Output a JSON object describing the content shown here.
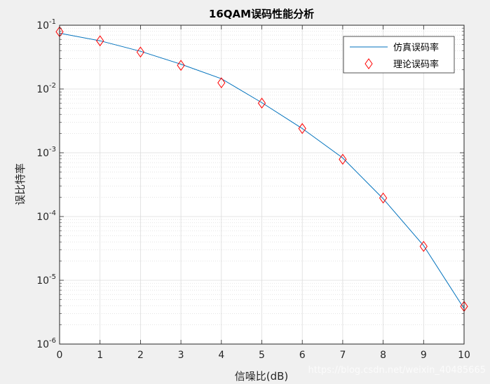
{
  "chart_data": {
    "type": "line",
    "title": "16QAM误码性能分析",
    "xlabel": "信噪比(dB)",
    "ylabel": "误比特率",
    "x": [
      0,
      1,
      2,
      3,
      4,
      5,
      6,
      7,
      8,
      9,
      10
    ],
    "xlim": [
      0,
      10
    ],
    "ylim": [
      1e-06,
      0.1
    ],
    "yscale": "log",
    "xticks": [
      "0",
      "1",
      "2",
      "3",
      "4",
      "5",
      "6",
      "7",
      "8",
      "9",
      "10"
    ],
    "yticks": [
      {
        "base": "10",
        "exp": "-6"
      },
      {
        "base": "10",
        "exp": "-5"
      },
      {
        "base": "10",
        "exp": "-4"
      },
      {
        "base": "10",
        "exp": "-3"
      },
      {
        "base": "10",
        "exp": "-2"
      },
      {
        "base": "10",
        "exp": "-1"
      }
    ],
    "grid": true,
    "minor_grid": true,
    "legend_position": "top-right",
    "series": [
      {
        "name": "仿真误码率",
        "style": "line",
        "color": "#0072BD",
        "values": [
          0.075,
          0.057,
          0.039,
          0.0245,
          0.0145,
          0.0061,
          0.0024,
          0.00083,
          0.00019,
          3.5e-05,
          3.6e-06
        ]
      },
      {
        "name": "理论误码率",
        "style": "diamond",
        "color": "#ff0000",
        "values": [
          0.079,
          0.057,
          0.038,
          0.0235,
          0.0125,
          0.006,
          0.0024,
          0.00079,
          0.000195,
          3.4e-05,
          3.9e-06
        ]
      }
    ]
  },
  "watermark": "https://blog.csdn.net/weixin_40485665"
}
